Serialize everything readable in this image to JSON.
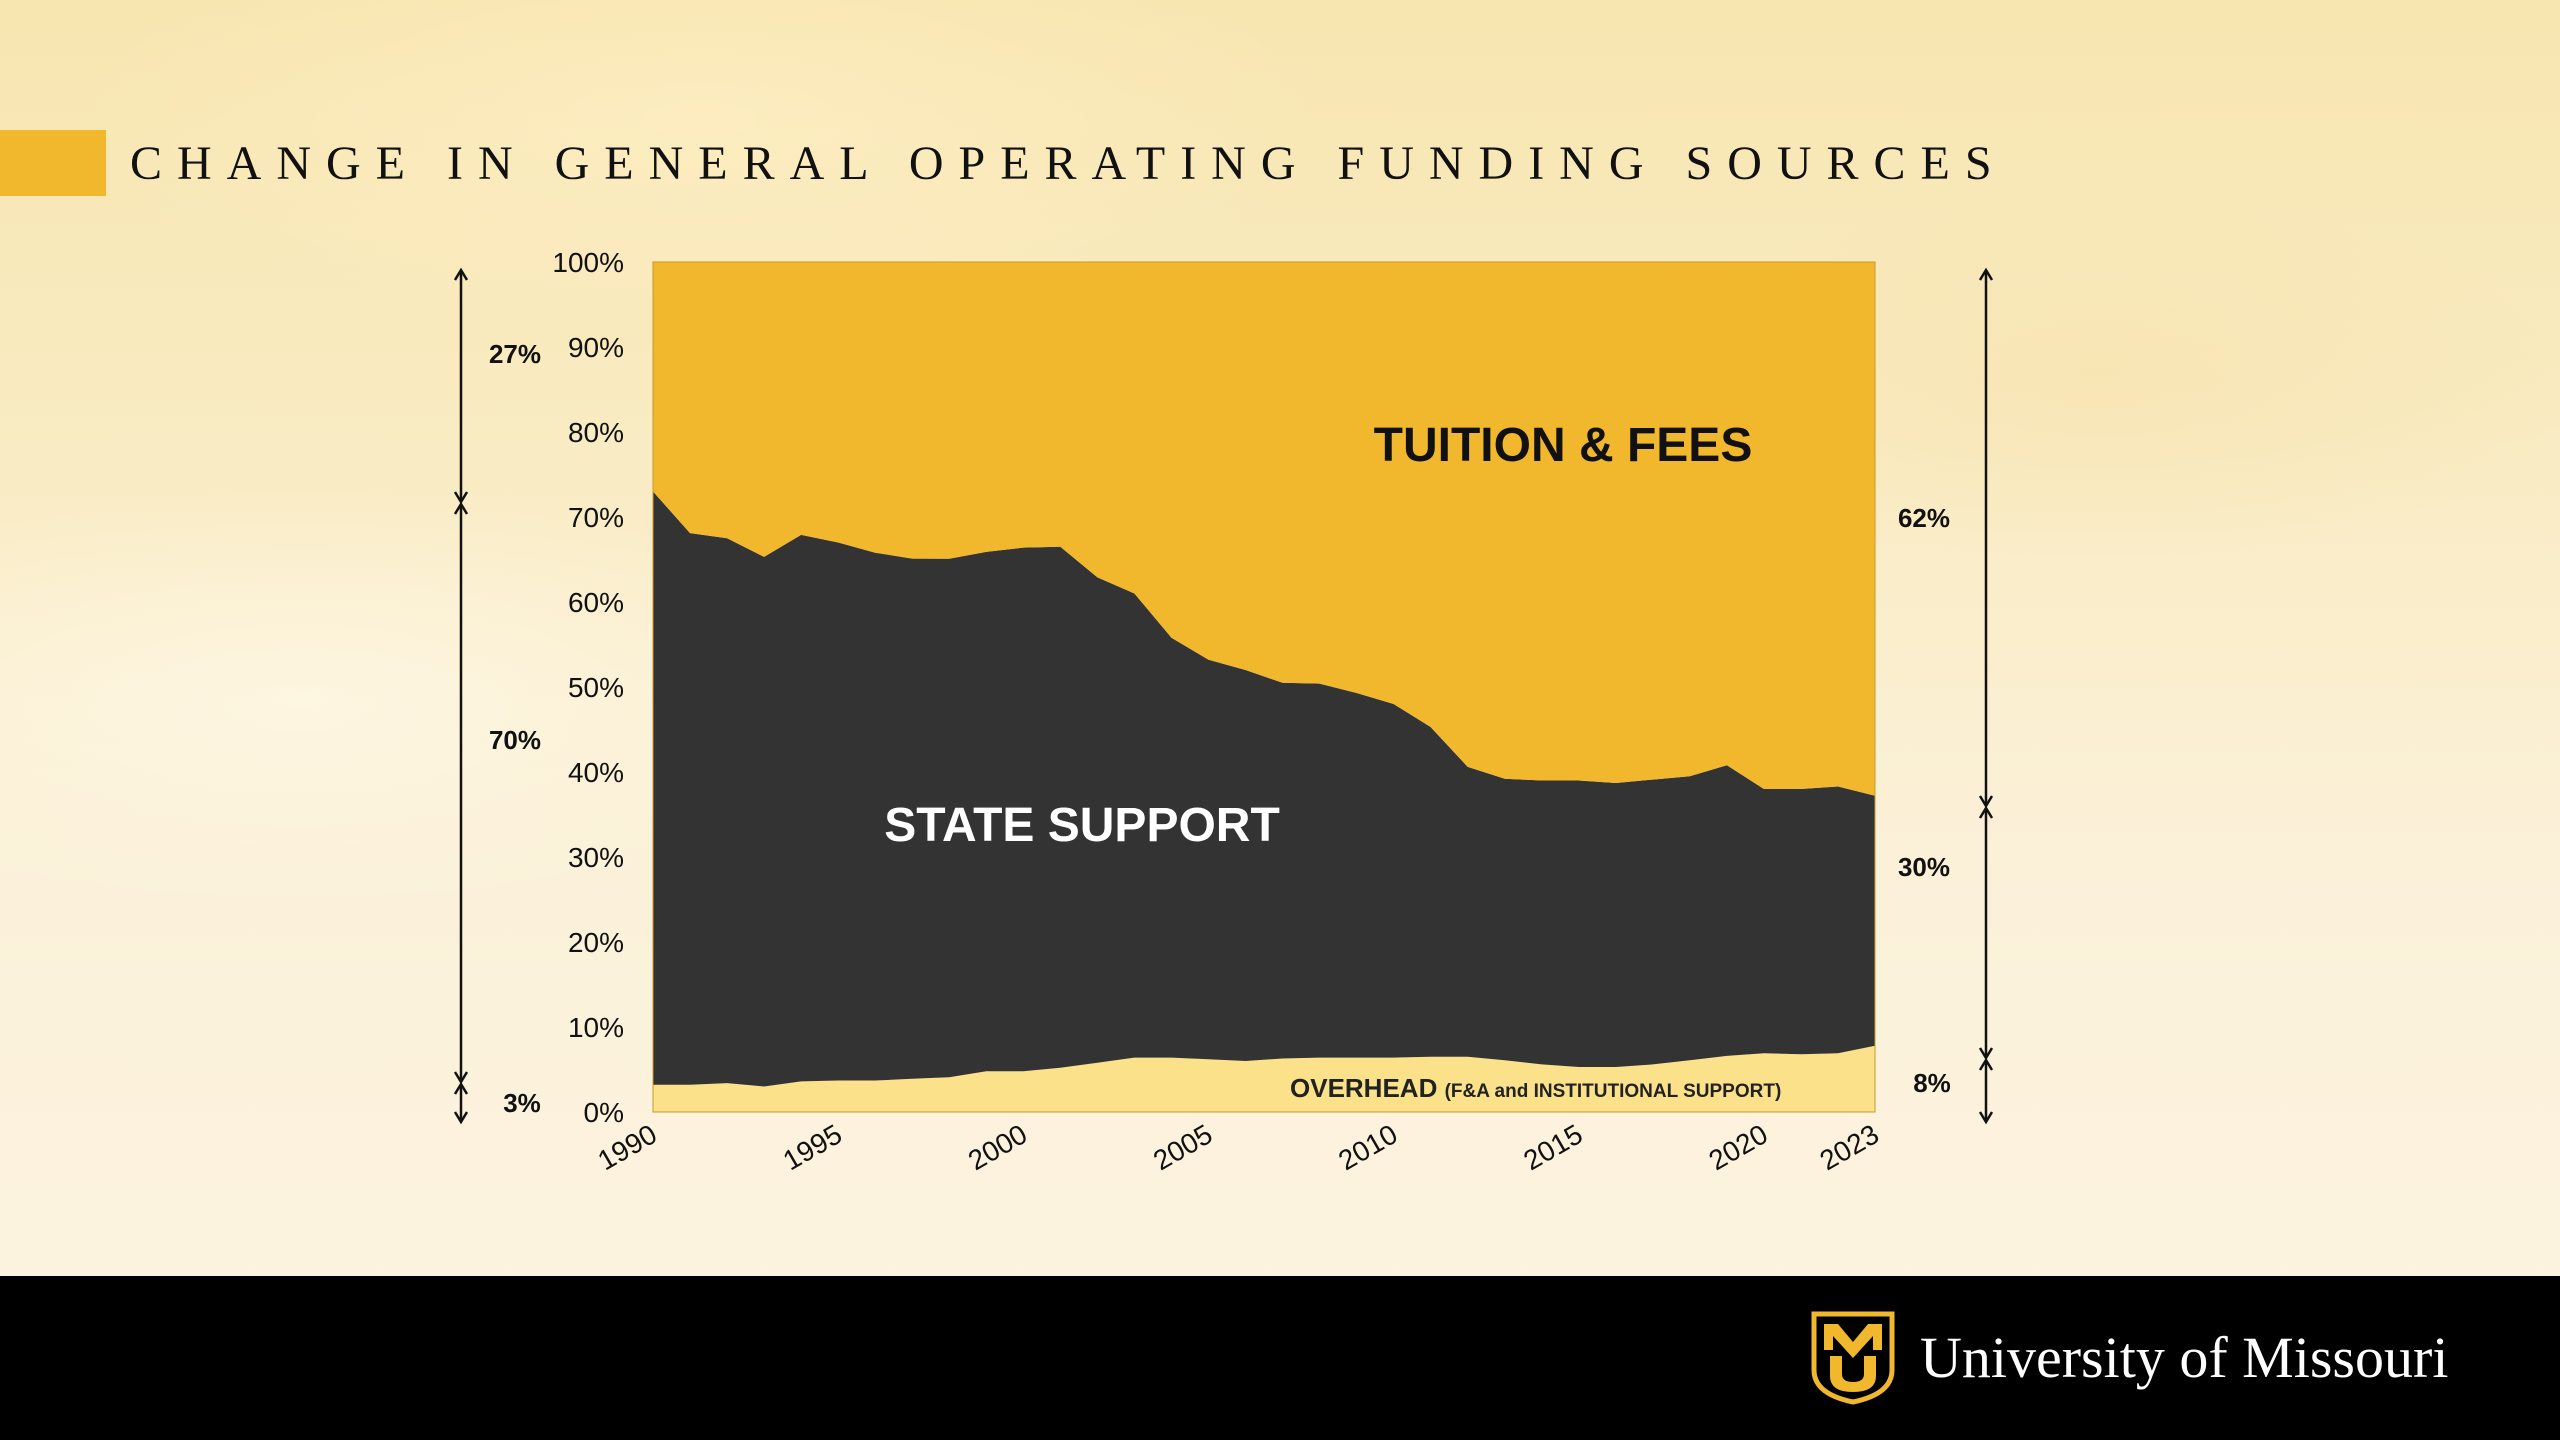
{
  "slide": {
    "title": "CHANGE IN GENERAL OPERATING FUNDING SOURCES"
  },
  "colors": {
    "tuition": "#f1b82d",
    "state": "#333333",
    "overhead": "#fbe28a",
    "accent": "#f1b82d",
    "footer": "#000000"
  },
  "chart_data": {
    "type": "area",
    "stacked": true,
    "title": "",
    "xlabel": "",
    "ylabel": "",
    "ylim": [
      0,
      100
    ],
    "yticks": [
      "0%",
      "10%",
      "20%",
      "30%",
      "40%",
      "50%",
      "60%",
      "70%",
      "80%",
      "90%",
      "100%"
    ],
    "xticks": [
      "1990",
      "1995",
      "2000",
      "2005",
      "2010",
      "2015",
      "2020",
      "2023"
    ],
    "x": [
      1990,
      1991,
      1992,
      1993,
      1994,
      1995,
      1996,
      1997,
      1998,
      1999,
      2000,
      2001,
      2002,
      2003,
      2004,
      2005,
      2006,
      2007,
      2008,
      2009,
      2010,
      2011,
      2012,
      2013,
      2014,
      2015,
      2016,
      2017,
      2018,
      2019,
      2020,
      2021,
      2022,
      2023
    ],
    "series": [
      {
        "name": "OVERHEAD",
        "name_detail": "(F&A and INSTITUTIONAL  SUPPORT)",
        "values": [
          3.2,
          3.2,
          3.4,
          3.0,
          3.6,
          3.7,
          3.7,
          3.9,
          4.1,
          4.8,
          4.8,
          5.2,
          5.8,
          6.4,
          6.4,
          6.2,
          6.0,
          6.3,
          6.4,
          6.4,
          6.4,
          6.5,
          6.5,
          6.1,
          5.6,
          5.3,
          5.3,
          5.6,
          6.1,
          6.6,
          6.9,
          6.8,
          6.9,
          7.8
        ]
      },
      {
        "name": "STATE SUPPORT",
        "values": [
          69.8,
          64.9,
          64.1,
          62.3,
          64.3,
          63.3,
          62.1,
          61.2,
          61.0,
          61.1,
          61.6,
          61.3,
          57.1,
          54.6,
          49.4,
          47.0,
          46.0,
          44.2,
          44.0,
          42.9,
          41.6,
          38.8,
          34.1,
          33.1,
          33.4,
          33.7,
          33.4,
          33.5,
          33.4,
          34.2,
          31.1,
          31.2,
          31.4,
          29.4
        ]
      },
      {
        "name": "TUITION & FEES",
        "values": [
          27.0,
          31.9,
          32.5,
          34.7,
          32.1,
          33.0,
          34.2,
          34.9,
          34.9,
          34.1,
          33.6,
          33.5,
          37.1,
          39.0,
          44.2,
          46.8,
          48.0,
          49.5,
          49.6,
          50.7,
          52.0,
          54.7,
          59.4,
          60.8,
          61.0,
          61.0,
          61.3,
          60.9,
          60.5,
          59.2,
          62.0,
          62.0,
          61.7,
          62.8
        ]
      }
    ],
    "annotations": {
      "left": [
        "27%",
        "70%",
        "3%"
      ],
      "right": [
        "62%",
        "30%",
        "8%"
      ]
    }
  },
  "branding": {
    "logo": "mu-tiger-shield-icon",
    "name": "University of Missouri"
  }
}
